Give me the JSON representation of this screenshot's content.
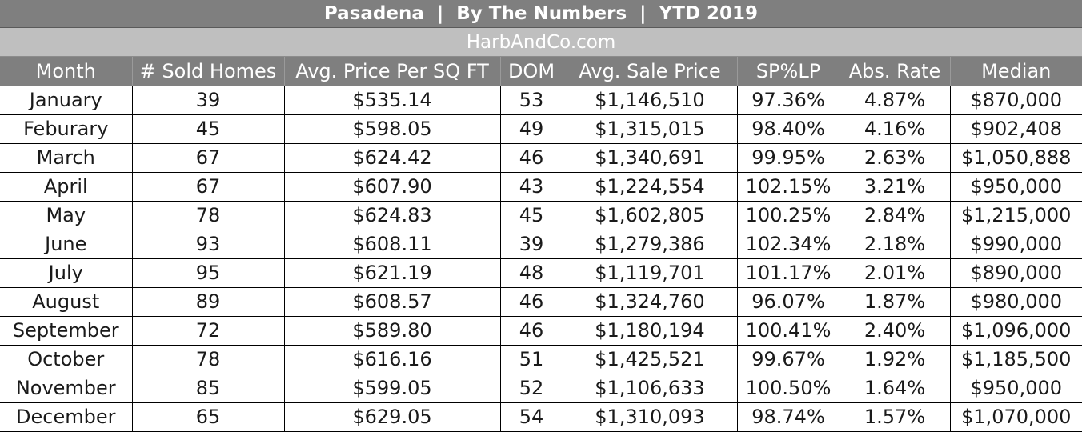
{
  "header": {
    "title": "Pasadena  |  By The Numbers  |  YTD 2019",
    "subtitle": "HarbAndCo.com"
  },
  "table": {
    "columns": [
      "Month",
      "# Sold Homes",
      "Avg. Price Per SQ FT",
      "DOM",
      "Avg. Sale Price",
      "SP%LP",
      "Abs. Rate",
      "Median"
    ],
    "rows": [
      [
        "January",
        "39",
        "$535.14",
        "53",
        "$1,146,510",
        "97.36%",
        "4.87%",
        "$870,000"
      ],
      [
        "Feburary",
        "45",
        "$598.05",
        "49",
        "$1,315,015",
        "98.40%",
        "4.16%",
        "$902,408"
      ],
      [
        "March",
        "67",
        "$624.42",
        "46",
        "$1,340,691",
        "99.95%",
        "2.63%",
        "$1,050,888"
      ],
      [
        "April",
        "67",
        "$607.90",
        "43",
        "$1,224,554",
        "102.15%",
        "3.21%",
        "$950,000"
      ],
      [
        "May",
        "78",
        "$624.83",
        "45",
        "$1,602,805",
        "100.25%",
        "2.84%",
        "$1,215,000"
      ],
      [
        "June",
        "93",
        "$608.11",
        "39",
        "$1,279,386",
        "102.34%",
        "2.18%",
        "$990,000"
      ],
      [
        "July",
        "95",
        "$621.19",
        "48",
        "$1,119,701",
        "101.17%",
        "2.01%",
        "$890,000"
      ],
      [
        "August",
        "89",
        "$608.57",
        "46",
        "$1,324,760",
        "96.07%",
        "1.87%",
        "$980,000"
      ],
      [
        "September",
        "72",
        "$589.80",
        "46",
        "$1,180,194",
        "100.41%",
        "2.40%",
        "$1,096,000"
      ],
      [
        "October",
        "78",
        "$616.16",
        "51",
        "$1,425,521",
        "99.67%",
        "1.92%",
        "$1,185,500"
      ],
      [
        "November",
        "85",
        "$599.05",
        "52",
        "$1,106,633",
        "100.50%",
        "1.64%",
        "$950,000"
      ],
      [
        "December",
        "65",
        "$629.05",
        "54",
        "$1,310,093",
        "98.74%",
        "1.57%",
        "$1,070,000"
      ]
    ]
  },
  "colors": {
    "header_dark": "#7f7f7f",
    "header_light": "#bfbfbf",
    "grid": "#000000"
  }
}
